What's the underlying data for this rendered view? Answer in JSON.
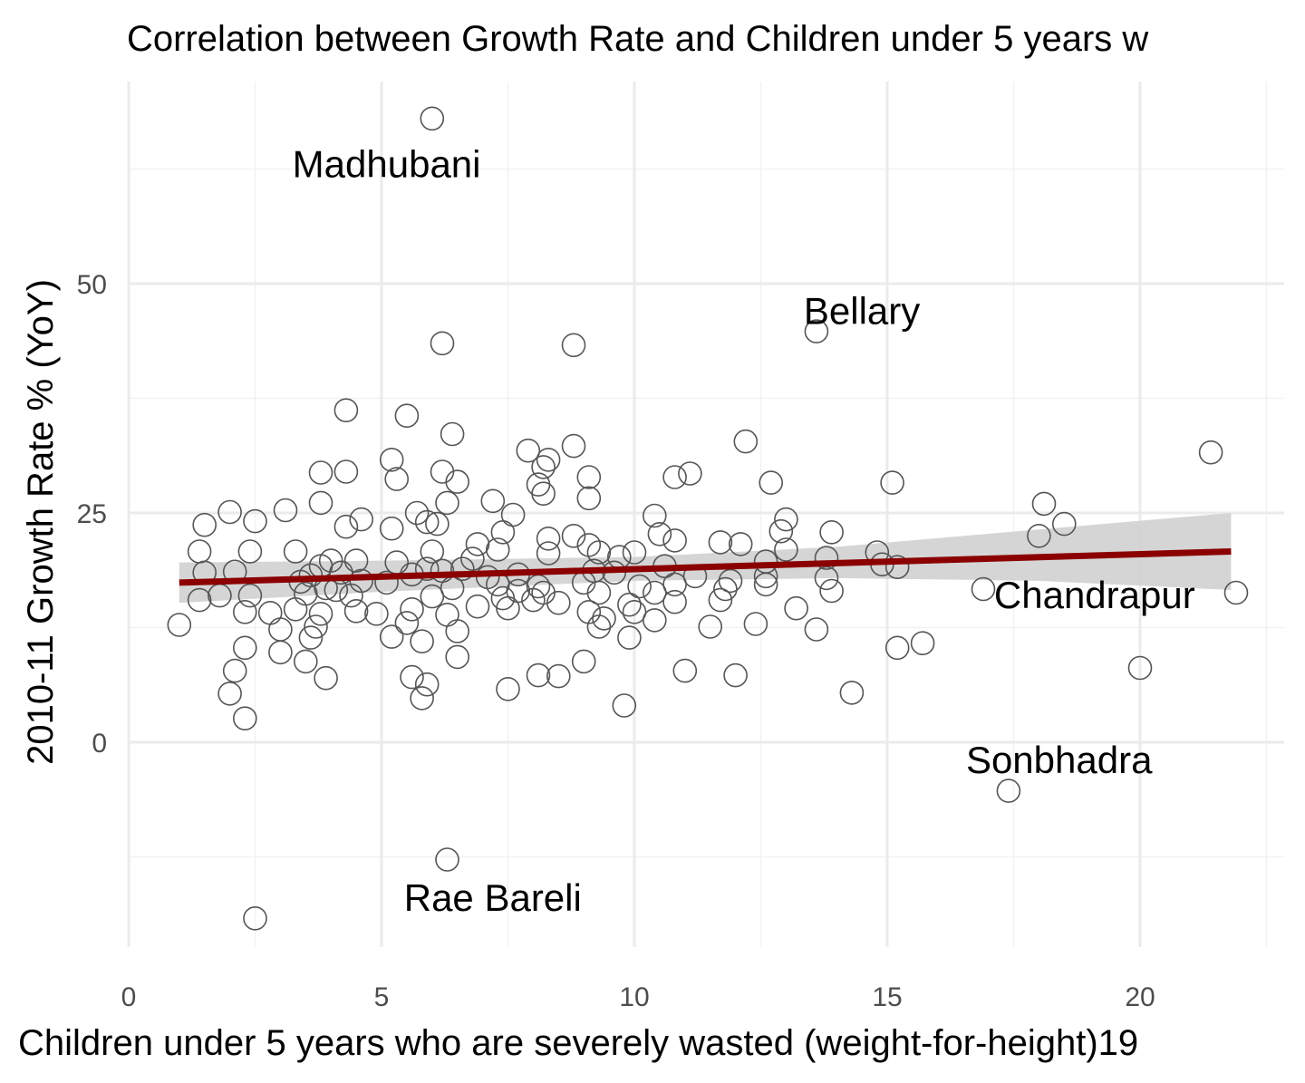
{
  "chart_data": {
    "type": "scatter",
    "title": "Correlation between Growth Rate and Children under 5 years w",
    "xlabel": "Children under 5 years who are severely wasted (weight-for-height)19",
    "ylabel": "2010-11 Growth Rate % (YoY)",
    "xlim": [
      0,
      22.9
    ],
    "ylim": [
      -22.5,
      72.5
    ],
    "x_ticks": [
      0,
      5,
      10,
      15,
      20
    ],
    "y_ticks": [
      0,
      25,
      50
    ],
    "grid": true,
    "legend": "none",
    "colors": {
      "points": "#555555",
      "trend_line": "#8b0000",
      "confidence_band": "#d3d3d3",
      "grid_major": "#ebebeb",
      "grid_minor": "#f2f2f2"
    },
    "trend": {
      "x": [
        1.0,
        21.8
      ],
      "y": [
        17.4,
        20.8
      ]
    },
    "confidence_band": {
      "x": [
        1.0,
        5,
        10,
        14,
        18,
        21.8
      ],
      "upper": [
        19.6,
        19.8,
        20.2,
        21.3,
        23.2,
        25.0
      ],
      "lower": [
        15.2,
        16.4,
        17.6,
        17.9,
        17.6,
        16.6
      ]
    },
    "annotations": [
      {
        "label": "Madhubani",
        "x": 5.1,
        "y": 63.0
      },
      {
        "label": "Bellary",
        "x": 14.5,
        "y": 47.0
      },
      {
        "label": "Chandrapur",
        "x": 19.1,
        "y": 16.0
      },
      {
        "label": "Sonbhadra",
        "x": 18.4,
        "y": -2.0
      },
      {
        "label": "Rae Bareli",
        "x": 7.2,
        "y": -17.0
      }
    ],
    "points": [
      [
        6.0,
        68.0
      ],
      [
        13.6,
        44.8
      ],
      [
        6.2,
        43.5
      ],
      [
        8.8,
        43.3
      ],
      [
        4.3,
        36.2
      ],
      [
        5.5,
        35.6
      ],
      [
        6.4,
        33.6
      ],
      [
        8.8,
        32.3
      ],
      [
        12.2,
        32.8
      ],
      [
        21.4,
        31.6
      ],
      [
        7.9,
        31.8
      ],
      [
        8.3,
        30.8
      ],
      [
        5.2,
        30.8
      ],
      [
        8.2,
        30.0
      ],
      [
        6.2,
        29.5
      ],
      [
        3.8,
        29.4
      ],
      [
        4.3,
        29.5
      ],
      [
        9.1,
        28.9
      ],
      [
        11.1,
        29.3
      ],
      [
        10.8,
        28.9
      ],
      [
        5.3,
        28.7
      ],
      [
        6.5,
        28.4
      ],
      [
        15.1,
        28.3
      ],
      [
        12.7,
        28.3
      ],
      [
        8.1,
        28.1
      ],
      [
        8.2,
        27.1
      ],
      [
        9.1,
        26.6
      ],
      [
        6.3,
        26.1
      ],
      [
        7.2,
        26.3
      ],
      [
        3.8,
        26.1
      ],
      [
        18.1,
        26.0
      ],
      [
        3.1,
        25.3
      ],
      [
        2.0,
        25.1
      ],
      [
        5.7,
        25.0
      ],
      [
        2.5,
        24.1
      ],
      [
        1.5,
        23.7
      ],
      [
        4.6,
        24.3
      ],
      [
        7.6,
        24.8
      ],
      [
        10.4,
        24.7
      ],
      [
        13.0,
        24.3
      ],
      [
        5.9,
        24.0
      ],
      [
        6.1,
        23.8
      ],
      [
        4.3,
        23.5
      ],
      [
        5.2,
        23.3
      ],
      [
        18.5,
        23.8
      ],
      [
        7.4,
        22.9
      ],
      [
        10.5,
        22.7
      ],
      [
        12.9,
        23.0
      ],
      [
        13.9,
        22.9
      ],
      [
        18.0,
        22.5
      ],
      [
        8.8,
        22.5
      ],
      [
        8.3,
        22.2
      ],
      [
        10.8,
        22.0
      ],
      [
        11.7,
        21.8
      ],
      [
        12.1,
        21.6
      ],
      [
        13.0,
        21.0
      ],
      [
        9.1,
        21.5
      ],
      [
        6.9,
        21.6
      ],
      [
        7.3,
        21.0
      ],
      [
        1.4,
        20.8
      ],
      [
        2.4,
        20.8
      ],
      [
        3.3,
        20.8
      ],
      [
        6.0,
        20.8
      ],
      [
        8.3,
        20.6
      ],
      [
        9.3,
        20.7
      ],
      [
        10.0,
        20.7
      ],
      [
        14.8,
        20.7
      ],
      [
        6.8,
        20.0
      ],
      [
        4.0,
        19.8
      ],
      [
        4.5,
        19.8
      ],
      [
        5.3,
        19.6
      ],
      [
        9.7,
        20.2
      ],
      [
        13.8,
        20.1
      ],
      [
        12.6,
        19.7
      ],
      [
        14.9,
        19.4
      ],
      [
        15.2,
        19.1
      ],
      [
        3.8,
        19.2
      ],
      [
        5.9,
        18.9
      ],
      [
        6.2,
        18.7
      ],
      [
        6.6,
        18.9
      ],
      [
        9.2,
        18.7
      ],
      [
        10.6,
        19.2
      ],
      [
        1.5,
        18.5
      ],
      [
        2.1,
        18.6
      ],
      [
        3.6,
        18.2
      ],
      [
        4.2,
        18.5
      ],
      [
        5.6,
        18.3
      ],
      [
        7.1,
        18.0
      ],
      [
        7.7,
        18.3
      ],
      [
        9.6,
        18.5
      ],
      [
        11.2,
        18.1
      ],
      [
        12.6,
        18.1
      ],
      [
        13.8,
        17.9
      ],
      [
        11.9,
        17.6
      ],
      [
        3.4,
        17.5
      ],
      [
        4.6,
        17.6
      ],
      [
        5.1,
        17.4
      ],
      [
        7.3,
        17.2
      ],
      [
        8.1,
        17.0
      ],
      [
        9.0,
        17.4
      ],
      [
        10.1,
        17.0
      ],
      [
        10.8,
        17.2
      ],
      [
        12.6,
        17.2
      ],
      [
        3.9,
        16.8
      ],
      [
        4.1,
        16.6
      ],
      [
        6.4,
        16.8
      ],
      [
        7.7,
        16.5
      ],
      [
        8.2,
        16.3
      ],
      [
        9.3,
        16.3
      ],
      [
        10.4,
        16.3
      ],
      [
        11.8,
        16.7
      ],
      [
        13.9,
        16.5
      ],
      [
        16.9,
        16.7
      ],
      [
        21.9,
        16.3
      ],
      [
        1.8,
        16.0
      ],
      [
        2.4,
        16.0
      ],
      [
        3.5,
        16.2
      ],
      [
        4.4,
        16.0
      ],
      [
        6.0,
        15.9
      ],
      [
        7.4,
        15.7
      ],
      [
        8.5,
        15.2
      ],
      [
        9.9,
        15.0
      ],
      [
        11.7,
        15.5
      ],
      [
        1.4,
        15.5
      ],
      [
        3.3,
        14.5
      ],
      [
        4.5,
        14.3
      ],
      [
        5.6,
        14.5
      ],
      [
        6.9,
        14.8
      ],
      [
        7.5,
        14.6
      ],
      [
        8.0,
        15.5
      ],
      [
        9.1,
        14.2
      ],
      [
        10.0,
        14.2
      ],
      [
        10.8,
        15.3
      ],
      [
        13.2,
        14.6
      ],
      [
        2.3,
        14.2
      ],
      [
        2.8,
        14.1
      ],
      [
        3.8,
        14.0
      ],
      [
        4.9,
        14.0
      ],
      [
        6.3,
        13.9
      ],
      [
        9.4,
        13.5
      ],
      [
        10.4,
        13.3
      ],
      [
        12.4,
        12.9
      ],
      [
        1.0,
        12.8
      ],
      [
        3.0,
        12.3
      ],
      [
        3.7,
        12.6
      ],
      [
        5.5,
        13.0
      ],
      [
        6.5,
        12.1
      ],
      [
        9.3,
        12.6
      ],
      [
        11.5,
        12.6
      ],
      [
        13.6,
        12.3
      ],
      [
        3.6,
        11.4
      ],
      [
        5.2,
        11.5
      ],
      [
        5.8,
        11.0
      ],
      [
        9.9,
        11.4
      ],
      [
        2.3,
        10.3
      ],
      [
        15.2,
        10.3
      ],
      [
        15.7,
        10.8
      ],
      [
        3.0,
        9.8
      ],
      [
        6.5,
        9.3
      ],
      [
        3.5,
        8.8
      ],
      [
        9.0,
        8.8
      ],
      [
        11.0,
        7.8
      ],
      [
        2.1,
        7.8
      ],
      [
        20.0,
        8.1
      ],
      [
        3.9,
        7.0
      ],
      [
        5.6,
        7.1
      ],
      [
        8.1,
        7.3
      ],
      [
        8.5,
        7.2
      ],
      [
        12.0,
        7.3
      ],
      [
        5.9,
        6.3
      ],
      [
        2.0,
        5.3
      ],
      [
        7.5,
        5.8
      ],
      [
        14.3,
        5.4
      ],
      [
        5.8,
        4.8
      ],
      [
        9.8,
        4.0
      ],
      [
        2.3,
        2.6
      ],
      [
        17.4,
        -5.3
      ],
      [
        6.3,
        -12.8
      ],
      [
        2.5,
        -19.2
      ]
    ]
  }
}
